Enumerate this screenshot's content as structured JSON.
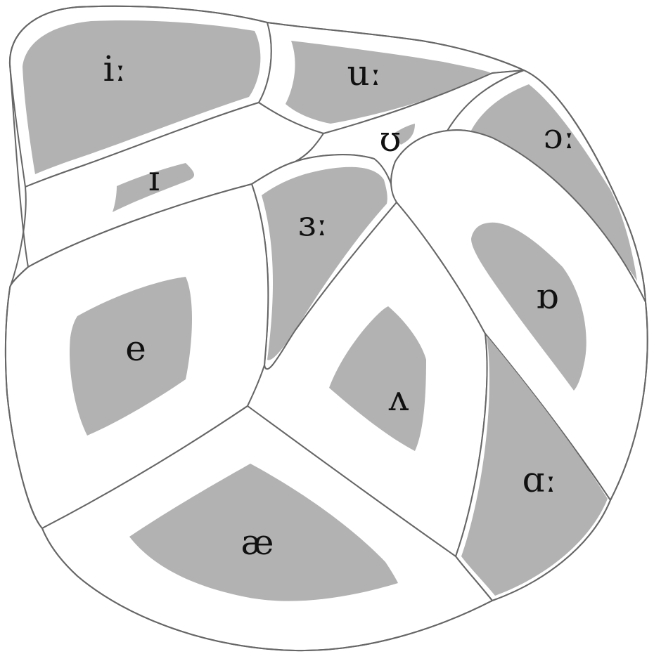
{
  "colors": {
    "background": "#ffffff",
    "cell_fill": "#ffffff",
    "core_fill": "#b2b2b2",
    "outline": "#666666",
    "text": "#111111"
  },
  "vowels": {
    "i_long": "iː",
    "u_long": "uː",
    "i_short": "ɪ",
    "u_short": "ʊ",
    "open_o_long": "ɔː",
    "schwa_long": "ɜː",
    "e": "e",
    "wedge": "ʌ",
    "open_o_short": "ɒ",
    "a_long": "ɑː",
    "ae": "æ"
  }
}
